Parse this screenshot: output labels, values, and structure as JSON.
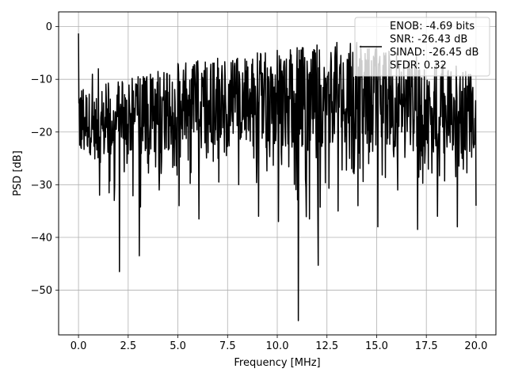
{
  "chart_data": {
    "type": "line",
    "title": "",
    "xlabel": "Frequency [MHz]",
    "ylabel": "PSD [dB]",
    "xlim": [
      -1.0,
      21.0
    ],
    "ylim": [
      -58.5,
      2.8
    ],
    "xticks": [
      0.0,
      2.5,
      5.0,
      7.5,
      10.0,
      12.5,
      15.0,
      17.5,
      20.0
    ],
    "xtick_labels": [
      "0.0",
      "2.5",
      "5.0",
      "7.5",
      "10.0",
      "12.5",
      "15.0",
      "17.5",
      "20.0"
    ],
    "yticks": [
      0,
      -10,
      -20,
      -30,
      -40,
      -50
    ],
    "ytick_labels": [
      "0",
      "−10",
      "−20",
      "−30",
      "−40",
      "−50"
    ],
    "grid": true,
    "legend_position": "top-right",
    "series_color": "#000000",
    "legend_entries": [
      "ENOB: -4.69 bits",
      "SNR: -26.43 dB",
      "SINAD: -26.45 dB",
      "SFDR: 0.32"
    ],
    "series": [
      {
        "x_range": [
          0.0,
          20.0
        ],
        "envelope_upper": [
          -1.3,
          -8.0,
          -10.5,
          -9.5,
          -8.5,
          -7.0,
          -6.5,
          -6.0,
          -6.0,
          -5.0,
          -4.5,
          -4.0,
          -3.5,
          -3.0,
          -3.0,
          -4.0,
          -5.0,
          -5.5,
          -6.5,
          -7.5,
          -9.0
        ],
        "envelope_lower": [
          -22.5,
          -32.0,
          -46.5,
          -43.5,
          -31.0,
          -34.0,
          -36.5,
          -29.5,
          -30.0,
          -36.0,
          -37.0,
          -55.8,
          -45.3,
          -35.0,
          -34.0,
          -38.0,
          -31.0,
          -38.5,
          -36.0,
          -38.0,
          -34.0
        ],
        "band_top": [
          -10.0,
          -14.0,
          -12.0,
          -11.0,
          -10.0,
          -9.0,
          -8.5,
          -8.0,
          -8.0,
          -7.5,
          -7.0,
          -6.5,
          -6.0,
          -5.5,
          -5.5,
          -6.0,
          -7.0,
          -8.0,
          -9.0,
          -10.0,
          -11.0
        ],
        "band_bottom": [
          -22.0,
          -26.0,
          -25.0,
          -25.0,
          -24.0,
          -23.0,
          -23.0,
          -22.0,
          -22.0,
          -23.0,
          -23.0,
          -23.0,
          -23.0,
          -22.0,
          -22.0,
          -23.0,
          -23.0,
          -24.0,
          -24.0,
          -25.0,
          -25.0
        ]
      }
    ]
  }
}
